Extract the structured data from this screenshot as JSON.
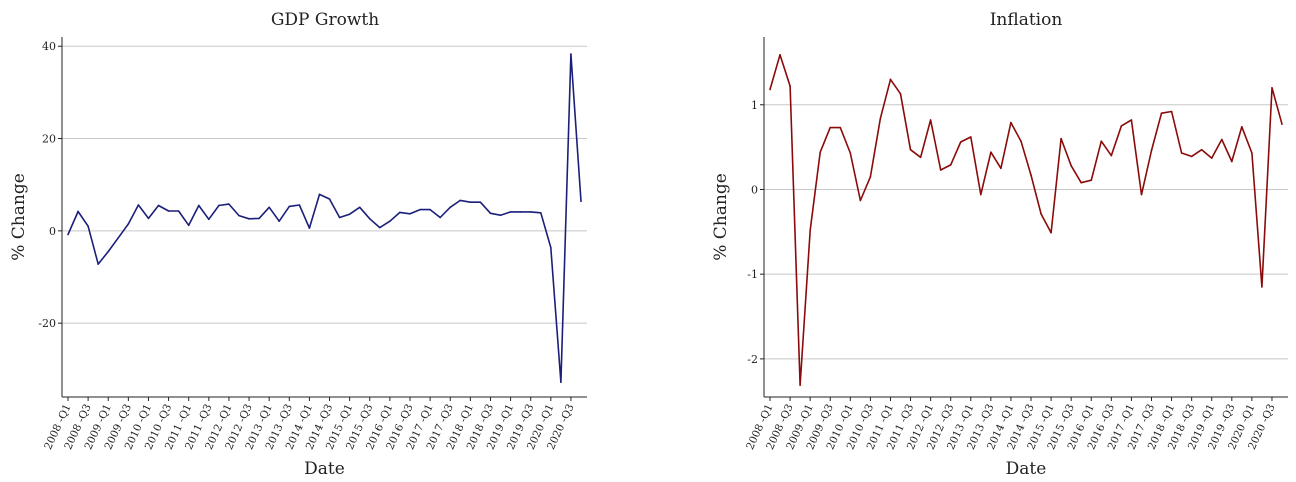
{
  "chart_data": [
    {
      "type": "line",
      "title": "GDP Growth",
      "xlabel": "Date",
      "ylabel": "% Change",
      "color": "#1b1f7a",
      "ylim": [
        -36,
        42
      ],
      "yticks": [
        -20,
        0,
        20,
        40
      ],
      "x_tick_labels": [
        "2008 -Q1",
        "2008 -Q3",
        "2009 -Q1",
        "2009 -Q3",
        "2010 -Q1",
        "2010 -Q3",
        "2011 -Q1",
        "2011 -Q3",
        "2012 -Q1",
        "2012 -Q3",
        "2013 -Q1",
        "2013 -Q3",
        "2014 -Q1",
        "2014 -Q3",
        "2015 -Q1",
        "2015 -Q3",
        "2016 -Q1",
        "2016 -Q3",
        "2017 -Q1",
        "2017 -Q3",
        "2018 -Q1",
        "2018 -Q3",
        "2019 -Q1",
        "2019 -Q3",
        "2020 -Q1",
        "2020 -Q3"
      ],
      "x": [
        "2008 -Q1",
        "2008 -Q2",
        "2008 -Q3",
        "2008 -Q4",
        "2009 -Q1",
        "2009 -Q2",
        "2009 -Q3",
        "2009 -Q4",
        "2010 -Q1",
        "2010 -Q2",
        "2010 -Q3",
        "2010 -Q4",
        "2011 -Q1",
        "2011 -Q2",
        "2011 -Q3",
        "2011 -Q4",
        "2012 -Q1",
        "2012 -Q2",
        "2012 -Q3",
        "2012 -Q4",
        "2013 -Q1",
        "2013 -Q2",
        "2013 -Q3",
        "2013 -Q4",
        "2014 -Q1",
        "2014 -Q2",
        "2014 -Q3",
        "2014 -Q4",
        "2015 -Q1",
        "2015 -Q2",
        "2015 -Q3",
        "2015 -Q4",
        "2016 -Q1",
        "2016 -Q2",
        "2016 -Q3",
        "2016 -Q4",
        "2017 -Q1",
        "2017 -Q2",
        "2017 -Q3",
        "2017 -Q4",
        "2018 -Q1",
        "2018 -Q2",
        "2018 -Q3",
        "2018 -Q4",
        "2019 -Q1",
        "2019 -Q2",
        "2019 -Q3",
        "2019 -Q4",
        "2020 -Q1",
        "2020 -Q2",
        "2020 -Q3",
        "2020 -Q4"
      ],
      "values": [
        -0.8,
        4.2,
        1.0,
        -7.2,
        -4.5,
        -1.5,
        1.5,
        5.6,
        2.7,
        5.5,
        4.3,
        4.3,
        1.2,
        5.5,
        2.5,
        5.5,
        5.8,
        3.3,
        2.6,
        2.7,
        5.1,
        2.1,
        5.3,
        5.6,
        0.6,
        7.9,
        6.9,
        2.9,
        3.6,
        5.1,
        2.6,
        0.7,
        2.1,
        4.0,
        3.7,
        4.6,
        4.6,
        2.9,
        5.1,
        6.6,
        6.2,
        6.2,
        3.8,
        3.4,
        4.1,
        4.1,
        4.1,
        3.9,
        -3.6,
        -32.8,
        38.3,
        6.4
      ],
      "grid": true
    },
    {
      "type": "line",
      "title": "Inflation",
      "xlabel": "Date",
      "ylabel": "% Change",
      "color": "#8b0a0a",
      "ylim": [
        -2.45,
        1.8
      ],
      "yticks": [
        -2,
        -1,
        0,
        1
      ],
      "x_tick_labels": [
        "2008 -Q1",
        "2008 -Q3",
        "2009 -Q1",
        "2009 -Q3",
        "2010 -Q1",
        "2010 -Q3",
        "2011 -Q1",
        "2011 -Q3",
        "2012 -Q1",
        "2012 -Q3",
        "2013 -Q1",
        "2013 -Q3",
        "2014 -Q1",
        "2014 -Q3",
        "2015 -Q1",
        "2015 -Q3",
        "2016 -Q1",
        "2016 -Q3",
        "2017 -Q1",
        "2017 -Q3",
        "2018 -Q1",
        "2018 -Q3",
        "2019 -Q1",
        "2019 -Q3",
        "2020 -Q1",
        "2020 -Q3"
      ],
      "x": [
        "2008 -Q1",
        "2008 -Q2",
        "2008 -Q3",
        "2008 -Q4",
        "2009 -Q1",
        "2009 -Q2",
        "2009 -Q3",
        "2009 -Q4",
        "2010 -Q1",
        "2010 -Q2",
        "2010 -Q3",
        "2010 -Q4",
        "2011 -Q1",
        "2011 -Q2",
        "2011 -Q3",
        "2011 -Q4",
        "2012 -Q1",
        "2012 -Q2",
        "2012 -Q3",
        "2012 -Q4",
        "2013 -Q1",
        "2013 -Q2",
        "2013 -Q3",
        "2013 -Q4",
        "2014 -Q1",
        "2014 -Q2",
        "2014 -Q3",
        "2014 -Q4",
        "2015 -Q1",
        "2015 -Q2",
        "2015 -Q3",
        "2015 -Q4",
        "2016 -Q1",
        "2016 -Q2",
        "2016 -Q3",
        "2016 -Q4",
        "2017 -Q1",
        "2017 -Q2",
        "2017 -Q3",
        "2017 -Q4",
        "2018 -Q1",
        "2018 -Q2",
        "2018 -Q3",
        "2018 -Q4",
        "2019 -Q1",
        "2019 -Q2",
        "2019 -Q3",
        "2019 -Q4",
        "2020 -Q1",
        "2020 -Q2",
        "2020 -Q3",
        "2020 -Q4"
      ],
      "values": [
        1.18,
        1.59,
        1.22,
        -2.31,
        -0.48,
        0.44,
        0.73,
        0.73,
        0.43,
        -0.13,
        0.15,
        0.84,
        1.3,
        1.13,
        0.47,
        0.38,
        0.82,
        0.23,
        0.29,
        0.56,
        0.62,
        -0.06,
        0.44,
        0.25,
        0.79,
        0.57,
        0.17,
        -0.29,
        -0.51,
        0.6,
        0.28,
        0.08,
        0.11,
        0.57,
        0.4,
        0.75,
        0.82,
        -0.06,
        0.46,
        0.9,
        0.92,
        0.43,
        0.39,
        0.47,
        0.37,
        0.59,
        0.33,
        0.74,
        0.43,
        -1.15,
        1.2,
        0.77
      ],
      "grid": true
    }
  ]
}
